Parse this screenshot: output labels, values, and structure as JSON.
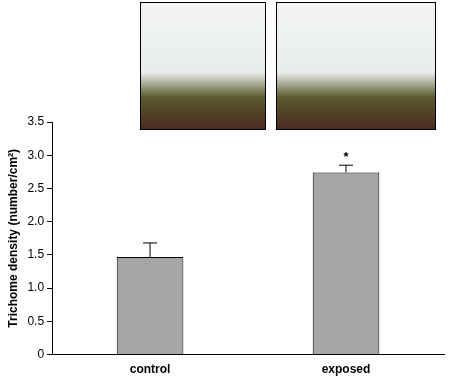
{
  "chart_data": {
    "type": "bar",
    "y_label": "Trichome density (number/cm²)",
    "categories": [
      "control",
      "exposed"
    ],
    "values": [
      1.47,
      2.74
    ],
    "errors": [
      0.21,
      0.11
    ],
    "annotations": [
      {
        "category": "exposed",
        "text": "*"
      }
    ],
    "color": "#a6a6a6",
    "ylim": [
      0,
      3.5
    ],
    "yticks": [
      0,
      0.5,
      {
        "value": 1,
        "label": "1.0"
      },
      1.5,
      {
        "value": 2,
        "label": "2.0"
      },
      2.5,
      {
        "value": 3,
        "label": "3.0"
      },
      3.5
    ],
    "grid": false
  }
}
